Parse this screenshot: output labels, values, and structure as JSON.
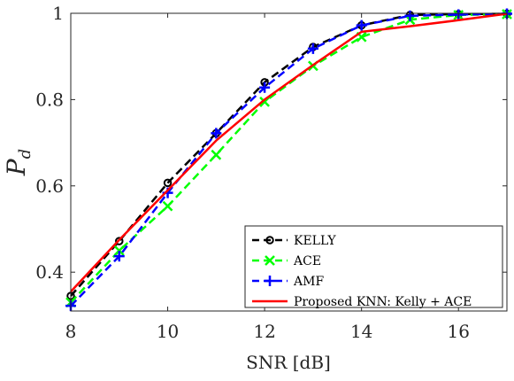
{
  "chart_data": {
    "type": "line",
    "xlabel": "SNR [dB]",
    "ylabel": "P",
    "ylabel_subscript": "d",
    "xlim": [
      8,
      17
    ],
    "ylim": [
      0.31,
      1.0
    ],
    "xticks": [
      8,
      10,
      12,
      14,
      16
    ],
    "xtick_labels": [
      "8",
      "10",
      "12",
      "14",
      "16"
    ],
    "yticks": [
      0.4,
      0.6,
      0.8,
      1.0
    ],
    "ytick_labels": [
      "0.4",
      "0.6",
      "0.8",
      "1"
    ],
    "grid": false,
    "legend_position": "bottom-right",
    "x": [
      8,
      9,
      10,
      11,
      12,
      13,
      14,
      15,
      16,
      17
    ],
    "series": [
      {
        "name": "KELLY",
        "color": "#000000",
        "dash": "dashed",
        "marker": "circle",
        "values": [
          0.345,
          0.472,
          0.607,
          0.722,
          0.84,
          0.922,
          0.972,
          0.996,
          0.998,
          0.999
        ]
      },
      {
        "name": "ACE",
        "color": "#00ff00",
        "dash": "dashed",
        "marker": "x",
        "values": [
          0.33,
          0.45,
          0.553,
          0.672,
          0.795,
          0.878,
          0.945,
          0.985,
          0.996,
          0.998
        ]
      },
      {
        "name": "AMF",
        "color": "#0000ff",
        "dash": "dashed",
        "marker": "plus",
        "values": [
          0.322,
          0.437,
          0.584,
          0.722,
          0.828,
          0.918,
          0.972,
          0.994,
          0.997,
          0.999
        ]
      },
      {
        "name": "Proposed KNN: Kelly + ACE",
        "color": "#ff0000",
        "dash": "solid",
        "marker": "none",
        "values": [
          0.355,
          0.475,
          0.59,
          0.705,
          0.8,
          0.88,
          0.957,
          0.97,
          0.984,
          0.999
        ]
      }
    ]
  }
}
